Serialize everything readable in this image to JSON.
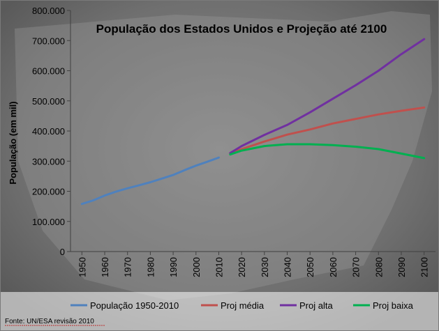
{
  "chart_data": {
    "type": "line",
    "title": "População dos Estados Unidos e Projeção até 2100",
    "ylabel": "População (em mil)",
    "xlabel": "",
    "xlim": [
      1945,
      2105
    ],
    "ylim": [
      0,
      800000
    ],
    "y_ticks": [
      0,
      100000,
      200000,
      300000,
      400000,
      500000,
      600000,
      700000,
      800000
    ],
    "y_tick_labels": [
      "0",
      "100.000",
      "200.000",
      "300.000",
      "400.000",
      "500.000",
      "600.000",
      "700.000",
      "800.000"
    ],
    "x_ticks": [
      1950,
      1960,
      1970,
      1980,
      1990,
      2000,
      2010,
      2020,
      2030,
      2040,
      2050,
      2060,
      2070,
      2080,
      2090,
      2100
    ],
    "x_tick_labels": [
      "1950",
      "1960",
      "1970",
      "1980",
      "1990",
      "2000",
      "2010",
      "2020",
      "2030",
      "2040",
      "2050",
      "2060",
      "2070",
      "2080",
      "2090",
      "2100"
    ],
    "grid": false,
    "legend_position": "bottom",
    "series": [
      {
        "name": "População 1950-2010",
        "color": "#4f81bd",
        "x": [
          1950,
          1955,
          1960,
          1965,
          1970,
          1975,
          1980,
          1985,
          1990,
          1995,
          2000,
          2005,
          2010
        ],
        "y": [
          158000,
          170000,
          186000,
          199000,
          210000,
          220000,
          230000,
          242000,
          254000,
          270000,
          285000,
          298000,
          312000
        ]
      },
      {
        "name": "Proj média",
        "color": "#c0504d",
        "x": [
          2015,
          2020,
          2030,
          2040,
          2050,
          2060,
          2070,
          2080,
          2090,
          2100
        ],
        "y": [
          325000,
          340000,
          365000,
          388000,
          405000,
          425000,
          440000,
          455000,
          467000,
          478000
        ]
      },
      {
        "name": "Proj alta",
        "color": "#7030a0",
        "x": [
          2015,
          2020,
          2030,
          2040,
          2050,
          2060,
          2070,
          2080,
          2090,
          2100
        ],
        "y": [
          327000,
          350000,
          387000,
          420000,
          462000,
          507000,
          552000,
          600000,
          655000,
          705000
        ]
      },
      {
        "name": "Proj baixa",
        "color": "#00b050",
        "x": [
          2015,
          2020,
          2030,
          2040,
          2050,
          2060,
          2070,
          2080,
          2090,
          2100
        ],
        "y": [
          322000,
          335000,
          350000,
          356000,
          356000,
          353000,
          348000,
          340000,
          325000,
          310000
        ]
      }
    ]
  },
  "source": "Fonte: UN/ESA revisão 2010"
}
